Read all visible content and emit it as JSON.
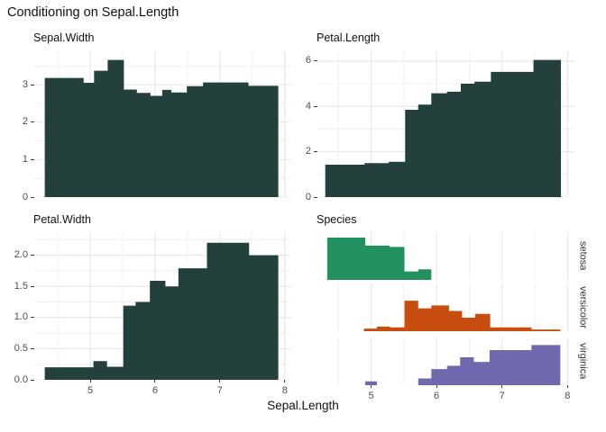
{
  "title": "Conditioning on Sepal.Length",
  "xlabel": "Sepal.Length",
  "colors": {
    "bar_dark": "#24403C",
    "setosa": "#21915F",
    "versicolor": "#C84E10",
    "virginica": "#6F6AB0",
    "grid_major": "#e4e4e4",
    "grid_minor": "#f0f0f0",
    "tick_text": "#4d4d4d",
    "axis_tick": "#3a3a3a"
  },
  "x_axis": {
    "ticks": [
      5,
      6,
      7,
      8
    ],
    "minor_step": 0.5,
    "range": [
      4.3,
      7.9
    ]
  },
  "chart_data": [
    {
      "id": "sepal-width",
      "type": "area",
      "title": "Sepal.Width",
      "ylim": [
        0,
        3.89
      ],
      "ytick_values": [
        0,
        1,
        2,
        3
      ],
      "ytick_labels": [
        "0",
        "1",
        "2",
        "3"
      ],
      "yminor": [
        0.5,
        1.5,
        2.5,
        3.5
      ],
      "steps": [
        [
          4.3,
          4.9,
          3.18
        ],
        [
          4.9,
          5.06,
          3.05
        ],
        [
          5.06,
          5.27,
          3.37
        ],
        [
          5.27,
          5.52,
          3.66
        ],
        [
          5.52,
          5.72,
          2.87
        ],
        [
          5.72,
          5.93,
          2.78
        ],
        [
          5.93,
          6.11,
          2.7
        ],
        [
          6.11,
          6.25,
          2.86
        ],
        [
          6.25,
          6.49,
          2.79
        ],
        [
          6.49,
          6.74,
          2.96
        ],
        [
          6.74,
          7.44,
          3.06
        ],
        [
          7.44,
          7.9,
          2.97
        ]
      ]
    },
    {
      "id": "petal-length",
      "type": "area",
      "title": "Petal.Length",
      "ylim": [
        0,
        6.43
      ],
      "ytick_values": [
        0,
        2,
        4,
        6
      ],
      "ytick_labels": [
        "0",
        "2",
        "4",
        "6"
      ],
      "yminor": [
        1,
        3,
        5
      ],
      "steps": [
        [
          4.3,
          4.9,
          1.43
        ],
        [
          4.9,
          5.27,
          1.5
        ],
        [
          5.27,
          5.52,
          1.56
        ],
        [
          5.52,
          5.72,
          3.85
        ],
        [
          5.72,
          5.92,
          4.08
        ],
        [
          5.92,
          6.16,
          4.58
        ],
        [
          6.16,
          6.37,
          4.65
        ],
        [
          6.37,
          6.58,
          5.0
        ],
        [
          6.58,
          6.83,
          5.09
        ],
        [
          6.83,
          7.48,
          5.52
        ],
        [
          7.48,
          7.9,
          6.05
        ]
      ]
    },
    {
      "id": "petal-width",
      "type": "area",
      "title": "Petal.Width",
      "ylim": [
        0,
        2.37
      ],
      "ytick_values": [
        0,
        0.5,
        1,
        1.5,
        2
      ],
      "ytick_labels": [
        "0.0",
        "0.5",
        "1.0",
        "1.5",
        "2.0"
      ],
      "yminor": [
        0.25,
        0.75,
        1.25,
        1.75,
        2.25
      ],
      "steps": [
        [
          4.3,
          5.05,
          0.2
        ],
        [
          5.05,
          5.26,
          0.3
        ],
        [
          5.26,
          5.51,
          0.21
        ],
        [
          5.51,
          5.7,
          1.19
        ],
        [
          5.7,
          5.92,
          1.25
        ],
        [
          5.92,
          6.16,
          1.59
        ],
        [
          6.16,
          6.36,
          1.5
        ],
        [
          6.36,
          6.8,
          1.79
        ],
        [
          6.8,
          7.45,
          2.2
        ],
        [
          7.45,
          7.9,
          2.0
        ]
      ]
    },
    {
      "id": "species",
      "type": "conditional-histogram",
      "title": "Species",
      "ylim": [
        0,
        1.13
      ],
      "rows": [
        {
          "label": "setosa",
          "color_key": "setosa",
          "steps": [
            [
              4.33,
              4.91,
              1.0
            ],
            [
              4.91,
              5.28,
              0.81
            ],
            [
              5.28,
              5.51,
              0.78
            ],
            [
              5.51,
              5.72,
              0.2
            ],
            [
              5.72,
              5.92,
              0.25
            ]
          ]
        },
        {
          "label": "versicolor",
          "color_key": "versicolor",
          "steps": [
            [
              4.89,
              5.09,
              0.06
            ],
            [
              5.09,
              5.29,
              0.11
            ],
            [
              5.29,
              5.51,
              0.09
            ],
            [
              5.51,
              5.72,
              0.72
            ],
            [
              5.72,
              5.92,
              0.54
            ],
            [
              5.92,
              6.19,
              0.61
            ],
            [
              6.19,
              6.39,
              0.48
            ],
            [
              6.39,
              6.59,
              0.32
            ],
            [
              6.59,
              6.82,
              0.41
            ],
            [
              6.82,
              7.45,
              0.09
            ],
            [
              7.45,
              7.89,
              0.04
            ]
          ]
        },
        {
          "label": "virginica",
          "color_key": "virginica",
          "steps": [
            [
              4.91,
              5.09,
              0.09
            ],
            [
              5.72,
              5.92,
              0.16
            ],
            [
              5.92,
              6.16,
              0.38
            ],
            [
              6.16,
              6.36,
              0.46
            ],
            [
              6.36,
              6.57,
              0.66
            ],
            [
              6.57,
              6.81,
              0.55
            ],
            [
              6.81,
              7.45,
              0.83
            ],
            [
              7.45,
              7.89,
              0.95
            ]
          ]
        }
      ]
    }
  ]
}
